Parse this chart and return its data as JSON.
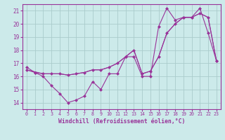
{
  "xlabel": "Windchill (Refroidissement éolien,°C)",
  "bg_color": "#cceaea",
  "grid_color": "#aacccc",
  "line_color": "#993399",
  "xlim": [
    -0.5,
    23.5
  ],
  "ylim": [
    13.5,
    21.5
  ],
  "yticks": [
    14,
    15,
    16,
    17,
    18,
    19,
    20,
    21
  ],
  "xticks": [
    0,
    1,
    2,
    3,
    4,
    5,
    6,
    7,
    8,
    9,
    10,
    11,
    12,
    13,
    14,
    15,
    16,
    17,
    18,
    19,
    20,
    21,
    22,
    23
  ],
  "series1_x": [
    0,
    1,
    2,
    3,
    4,
    5,
    6,
    7,
    8,
    9,
    10,
    11,
    12,
    13,
    14,
    15,
    16,
    17,
    18,
    19,
    20,
    21,
    22,
    23
  ],
  "series1_y": [
    16.7,
    16.3,
    16.0,
    15.3,
    14.7,
    14.0,
    14.2,
    14.5,
    15.6,
    15.0,
    16.2,
    16.2,
    17.5,
    17.5,
    16.0,
    16.0,
    19.8,
    21.2,
    20.3,
    20.5,
    20.5,
    21.2,
    19.3,
    17.2
  ],
  "series2_x": [
    0,
    1,
    2,
    3,
    4,
    5,
    6,
    7,
    8,
    9,
    10,
    11,
    12,
    13,
    14,
    15,
    16,
    17,
    18,
    19,
    20,
    21,
    22,
    23
  ],
  "series2_y": [
    16.5,
    16.3,
    16.2,
    16.2,
    16.2,
    16.1,
    16.2,
    16.3,
    16.5,
    16.5,
    16.7,
    17.0,
    17.5,
    18.0,
    16.2,
    16.4,
    17.5,
    19.3,
    20.0,
    20.5,
    20.5,
    20.8,
    20.5,
    17.2
  ],
  "series3_x": [
    0,
    2,
    3,
    4,
    5,
    6,
    7,
    8,
    9,
    10,
    11,
    12,
    13,
    14,
    15,
    16,
    17,
    18,
    19,
    20,
    21,
    22,
    23
  ],
  "series3_y": [
    16.5,
    16.2,
    16.2,
    16.2,
    16.1,
    16.2,
    16.3,
    16.5,
    16.5,
    16.7,
    17.0,
    17.5,
    18.0,
    16.2,
    16.4,
    17.5,
    19.3,
    20.0,
    20.5,
    20.5,
    20.8,
    20.5,
    17.2
  ]
}
